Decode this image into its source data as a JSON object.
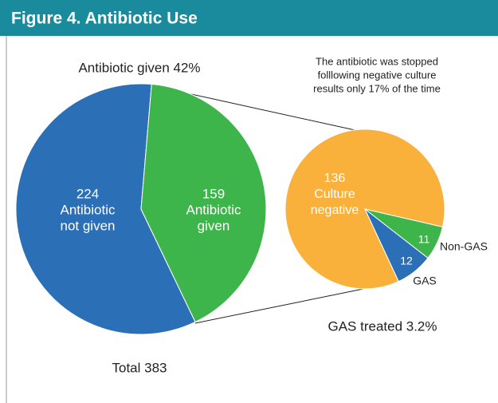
{
  "chart_data": [
    {
      "type": "pie",
      "title": "Figure 4. Antibiotic Use",
      "annotation": "Antibiotic given 42%",
      "total_label": "Total 383",
      "categories": [
        [
          "Antibiotic",
          "not given"
        ],
        [
          "Antibiotic",
          "given"
        ]
      ],
      "values": [
        224,
        159
      ],
      "colors": [
        "#2b6fb6",
        "#3db54a"
      ],
      "startangle": 154.3
    },
    {
      "type": "pie",
      "annotation": [
        "The antibiotic was stopped",
        "folllowing negative culture",
        "results only 17% of the time"
      ],
      "footnote": "GAS treated 3.2%",
      "categories": [
        [
          "Culture",
          "negative"
        ],
        [
          "Non-GAS"
        ],
        [
          "GAS"
        ]
      ],
      "values": [
        136,
        11,
        12
      ],
      "colors": [
        "#f9b13c",
        "#3db54a",
        "#2b6fb6"
      ],
      "startangle": 155
    }
  ]
}
